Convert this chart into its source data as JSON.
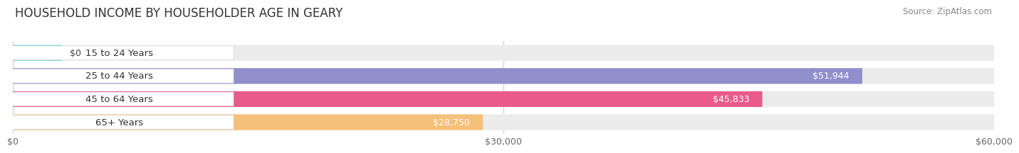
{
  "title": "HOUSEHOLD INCOME BY HOUSEHOLDER AGE IN GEARY",
  "source": "Source: ZipAtlas.com",
  "categories": [
    "15 to 24 Years",
    "25 to 44 Years",
    "45 to 64 Years",
    "65+ Years"
  ],
  "values": [
    0,
    51944,
    45833,
    28750
  ],
  "bar_colors": [
    "#68CCCB",
    "#8F8FCC",
    "#E85B8A",
    "#F5C07A"
  ],
  "bar_bg_color": "#EBEBEB",
  "value_labels": [
    "$0",
    "$51,944",
    "$45,833",
    "$28,750"
  ],
  "xlim": [
    0,
    60000
  ],
  "xticks": [
    0,
    30000,
    60000
  ],
  "xtick_labels": [
    "$0",
    "$30,000",
    "$60,000"
  ],
  "title_fontsize": 12,
  "source_fontsize": 8.5,
  "label_fontsize": 9.5,
  "value_fontsize": 9,
  "tick_fontsize": 9
}
